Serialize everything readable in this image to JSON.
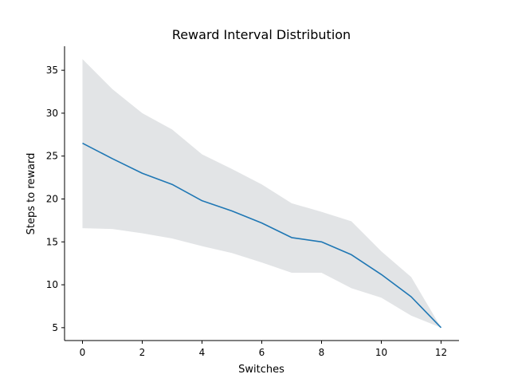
{
  "chart_data": {
    "type": "line",
    "title": "Reward Interval Distribution",
    "xlabel": "Switches",
    "ylabel": "Steps to reward",
    "xlim": [
      -0.6,
      12.6
    ],
    "ylim": [
      3.5,
      37.8
    ],
    "xticks": [
      0,
      2,
      4,
      6,
      8,
      10,
      12
    ],
    "yticks": [
      5,
      10,
      15,
      20,
      25,
      30,
      35
    ],
    "grid": false,
    "legend": "none",
    "series": [
      {
        "x": [
          0,
          1,
          2,
          3,
          4,
          5,
          6,
          7,
          8,
          9,
          10,
          11,
          12
        ],
        "mean": [
          26.5,
          24.7,
          23.0,
          21.7,
          19.8,
          18.6,
          17.2,
          15.5,
          15.0,
          13.5,
          11.2,
          8.6,
          5.0
        ],
        "upper": [
          36.3,
          32.8,
          30.0,
          28.1,
          25.2,
          23.5,
          21.7,
          19.5,
          18.5,
          17.4,
          13.9,
          10.9,
          5.0
        ],
        "lower": [
          16.6,
          16.5,
          16.0,
          15.4,
          14.5,
          13.7,
          12.6,
          11.4,
          11.4,
          9.6,
          8.5,
          6.4,
          5.0
        ],
        "line_color": "#1f77b4",
        "band_color": "#c5cacd"
      }
    ]
  }
}
